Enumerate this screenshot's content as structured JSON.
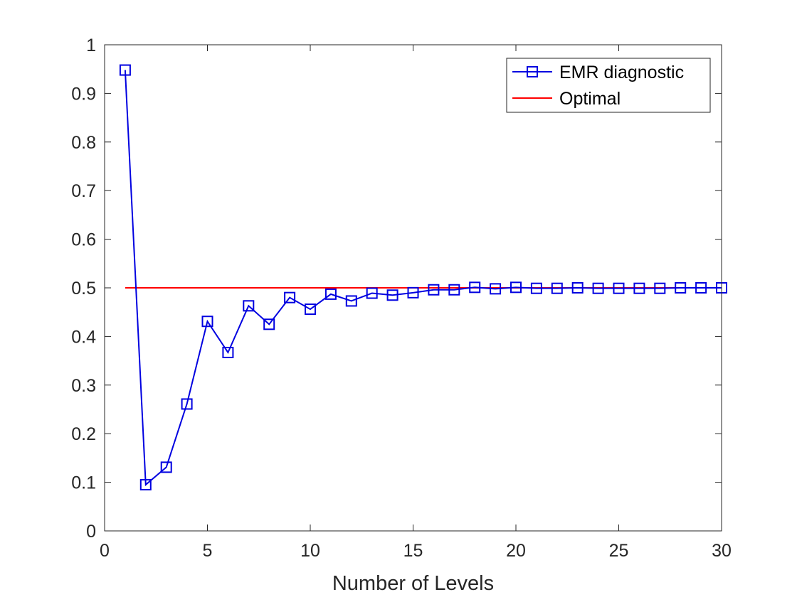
{
  "chart_data": {
    "type": "line",
    "xlabel": "Number of Levels",
    "ylabel": "",
    "xlim": [
      0,
      30
    ],
    "ylim": [
      0,
      1
    ],
    "x_ticks": [
      0,
      5,
      10,
      15,
      20,
      25,
      30
    ],
    "x_tick_labels": [
      "0",
      "5",
      "10",
      "15",
      "20",
      "25",
      "30"
    ],
    "y_ticks": [
      0,
      0.1,
      0.2,
      0.3,
      0.4,
      0.5,
      0.6,
      0.7,
      0.8,
      0.9,
      1
    ],
    "y_tick_labels": [
      "0",
      "0.1",
      "0.2",
      "0.3",
      "0.4",
      "0.5",
      "0.6",
      "0.7",
      "0.8",
      "0.9",
      "1"
    ],
    "grid": false,
    "legend_position": "top-right",
    "series": [
      {
        "name": "EMR diagnostic",
        "color": "#0000e0",
        "marker": "square",
        "x": [
          1,
          2,
          3,
          4,
          5,
          6,
          7,
          8,
          9,
          10,
          11,
          12,
          13,
          14,
          15,
          16,
          17,
          18,
          19,
          20,
          21,
          22,
          23,
          24,
          25,
          26,
          27,
          28,
          29,
          30
        ],
        "y": [
          0.948,
          0.095,
          0.131,
          0.261,
          0.431,
          0.367,
          0.463,
          0.425,
          0.48,
          0.456,
          0.487,
          0.473,
          0.489,
          0.485,
          0.49,
          0.496,
          0.496,
          0.501,
          0.498,
          0.501,
          0.499,
          0.499,
          0.5,
          0.499,
          0.499,
          0.499,
          0.499,
          0.5,
          0.5,
          0.5
        ]
      },
      {
        "name": "Optimal",
        "color": "#ff0000",
        "marker": "none",
        "x": [
          1,
          30
        ],
        "y": [
          0.5,
          0.5
        ]
      }
    ]
  }
}
